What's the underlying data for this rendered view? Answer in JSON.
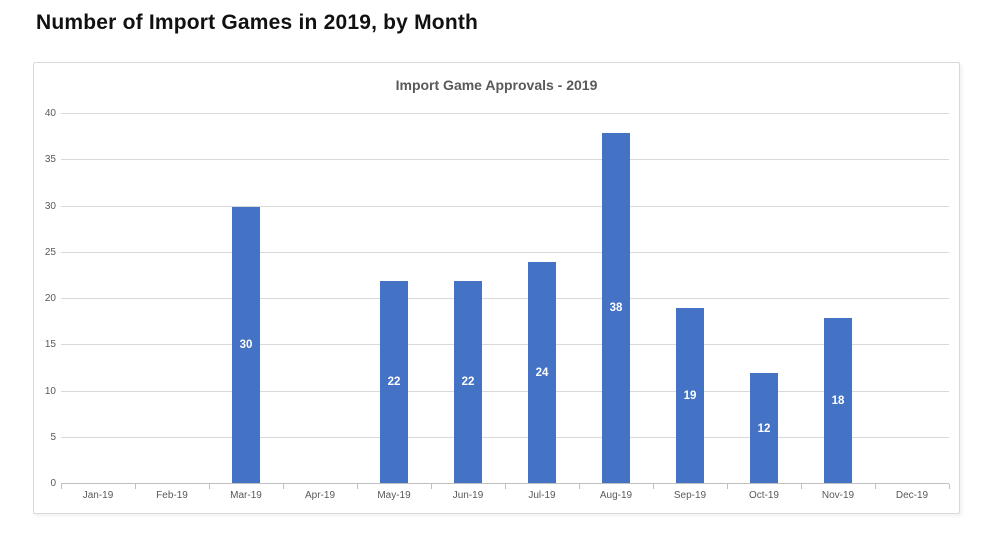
{
  "page": {
    "title": "Number of Import Games in 2019, by Month"
  },
  "chart_data": {
    "type": "bar",
    "title": "Import Game Approvals - 2019",
    "categories": [
      "Jan-19",
      "Feb-19",
      "Mar-19",
      "Apr-19",
      "May-19",
      "Jun-19",
      "Jul-19",
      "Aug-19",
      "Sep-19",
      "Oct-19",
      "Nov-19",
      "Dec-19"
    ],
    "values": [
      0,
      0,
      30,
      0,
      22,
      22,
      24,
      38,
      19,
      12,
      18,
      0
    ],
    "data_labels": [
      "",
      "",
      "30",
      "",
      "22",
      "22",
      "24",
      "38",
      "19",
      "12",
      "18",
      ""
    ],
    "xlabel": "",
    "ylabel": "",
    "ylim": [
      0,
      40
    ],
    "y_ticks": [
      0,
      5,
      10,
      15,
      20,
      25,
      30,
      35,
      40
    ],
    "grid": true,
    "legend": false,
    "data_label_position": "inside-center",
    "bar_color": "#4472C4",
    "data_label_color": "#FFFFFF",
    "gridline_color": "#D9D9D9",
    "axis_text_color": "#595959"
  }
}
